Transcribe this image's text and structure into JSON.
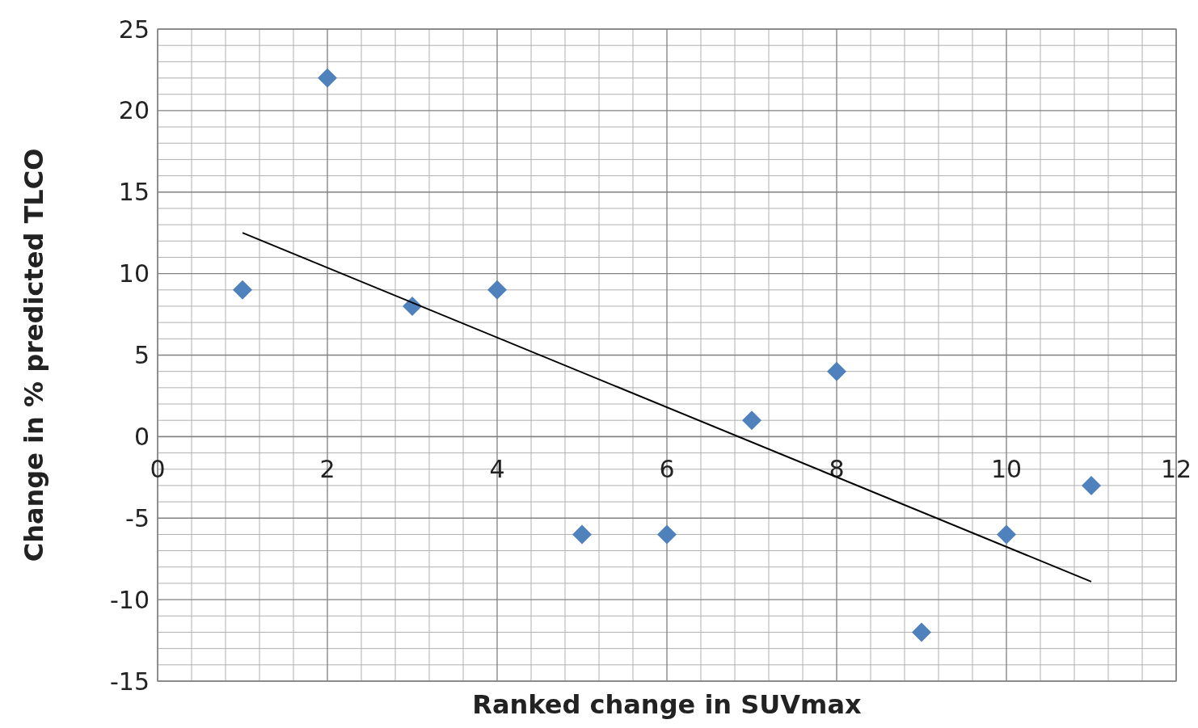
{
  "chart_data": {
    "type": "scatter",
    "xlabel": "Ranked change in SUVmax",
    "ylabel": "Change in % predicted TLCO",
    "xlim": [
      0,
      12
    ],
    "xticks": [
      0,
      2,
      4,
      6,
      8,
      10,
      12
    ],
    "ylim": [
      -15,
      25
    ],
    "yticks": [
      -15,
      -10,
      -5,
      0,
      5,
      10,
      15,
      20,
      25
    ],
    "grid": true,
    "marker": "diamond",
    "series": [
      {
        "color": "#4f81bd",
        "x": [
          1,
          2,
          3,
          4,
          5,
          6,
          7,
          8,
          9,
          10,
          11
        ],
        "values": [
          9,
          22,
          8,
          9,
          -6,
          -6,
          1,
          4,
          -12,
          -6,
          -3
        ]
      },
      {
        "type": "line",
        "color": "#000000",
        "marker": "none",
        "x": [
          1,
          11
        ],
        "values": [
          12.5,
          -8.9
        ]
      }
    ]
  }
}
